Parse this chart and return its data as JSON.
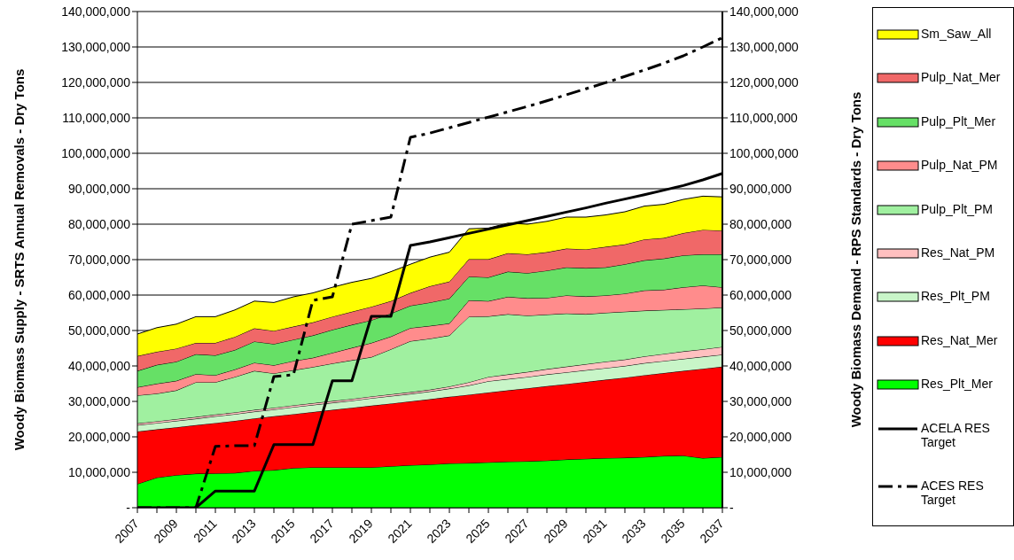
{
  "chart_data": {
    "type": "area",
    "stacked": true,
    "xlabel": null,
    "ylabel": "Woody Biomass Supply - SRTS Annual Removals - Dry Tons",
    "y2label": "Woody Biomass Demand - RPS Standards - Dry Tons",
    "categories": [
      "2007",
      null,
      "2009",
      null,
      "2011",
      null,
      "2013",
      null,
      "2015",
      null,
      "2017",
      null,
      "2019",
      null,
      "2021",
      null,
      "2023",
      null,
      "2025",
      null,
      "2027",
      null,
      "2029",
      null,
      "2031",
      null,
      "2033",
      null,
      "2035",
      null,
      "2037"
    ],
    "ylim": [
      0,
      140000000
    ],
    "yticks": [
      {
        "value": 0,
        "label": "-"
      },
      {
        "value": 10000000,
        "label": "10,000,000"
      },
      {
        "value": 20000000,
        "label": "20,000,000"
      },
      {
        "value": 30000000,
        "label": "30,000,000"
      },
      {
        "value": 40000000,
        "label": "40,000,000"
      },
      {
        "value": 50000000,
        "label": "50,000,000"
      },
      {
        "value": 60000000,
        "label": "60,000,000"
      },
      {
        "value": 70000000,
        "label": "70,000,000"
      },
      {
        "value": 80000000,
        "label": "80,000,000"
      },
      {
        "value": 90000000,
        "label": "90,000,000"
      },
      {
        "value": 100000000,
        "label": "100,000,000"
      },
      {
        "value": 110000000,
        "label": "110,000,000"
      },
      {
        "value": 120000000,
        "label": "120,000,000"
      },
      {
        "value": 130000000,
        "label": "130,000,000"
      },
      {
        "value": 140000000,
        "label": "140,000,000"
      }
    ],
    "y2lim": [
      0,
      140000000
    ],
    "y2ticks": [
      {
        "value": 0,
        "label": "-"
      },
      {
        "value": 10000000,
        "label": "10,000,000"
      },
      {
        "value": 20000000,
        "label": "20,000,000"
      },
      {
        "value": 30000000,
        "label": "30,000,000"
      },
      {
        "value": 40000000,
        "label": "40,000,000"
      },
      {
        "value": 50000000,
        "label": "50,000,000"
      },
      {
        "value": 60000000,
        "label": "60,000,000"
      },
      {
        "value": 70000000,
        "label": "70,000,000"
      },
      {
        "value": 80000000,
        "label": "80,000,000"
      },
      {
        "value": 90000000,
        "label": "90,000,000"
      },
      {
        "value": 100000000,
        "label": "100,000,000"
      },
      {
        "value": 110000000,
        "label": "110,000,000"
      },
      {
        "value": 120000000,
        "label": "120,000,000"
      },
      {
        "value": 130000000,
        "label": "130,000,000"
      },
      {
        "value": 140000000,
        "label": "140,000,000"
      }
    ],
    "grid": "y",
    "legend": "right",
    "series": [
      {
        "name": "Res_Plt_Mer",
        "color": "#00ff00",
        "values": [
          6700000,
          8500000,
          9200000,
          9600000,
          9700000,
          9800000,
          10400000,
          10600000,
          11200000,
          11400000,
          11400000,
          11400000,
          11400000,
          11700000,
          12000000,
          12200000,
          12500000,
          12600000,
          12800000,
          13000000,
          13100000,
          13300000,
          13600000,
          13800000,
          14000000,
          14100000,
          14300000,
          14600000,
          14700000,
          14000000,
          14300000
        ]
      },
      {
        "name": "Res_Nat_Mer",
        "color": "#ff0000",
        "values": [
          14800000,
          13600000,
          13500000,
          13700000,
          14200000,
          14700000,
          14800000,
          15200000,
          15200000,
          15600000,
          16200000,
          16800000,
          17400000,
          17700000,
          18000000,
          18400000,
          18800000,
          19300000,
          19700000,
          20100000,
          20600000,
          21000000,
          21300000,
          21700000,
          22100000,
          22600000,
          23100000,
          23400000,
          23900000,
          25200000,
          25500000
        ]
      },
      {
        "name": "Res_Plt_PM",
        "color": "#c8f5c8",
        "values": [
          1800000,
          1800000,
          1800000,
          1800000,
          1900000,
          1900000,
          1900000,
          1900000,
          2000000,
          2000000,
          2000000,
          2000000,
          2100000,
          2100000,
          2100000,
          2200000,
          2300000,
          2600000,
          3200000,
          3200000,
          3200000,
          3300000,
          3300000,
          3300000,
          3300000,
          3300000,
          3400000,
          3400000,
          3400000,
          3400000,
          3400000
        ]
      },
      {
        "name": "Res_Nat_PM",
        "color": "#ffc0c0",
        "values": [
          500000,
          500000,
          500000,
          500000,
          500000,
          500000,
          500000,
          500000,
          500000,
          500000,
          500000,
          500000,
          500000,
          500000,
          500000,
          500000,
          600000,
          900000,
          1200000,
          1300000,
          1400000,
          1500000,
          1600000,
          1700000,
          1800000,
          1800000,
          1900000,
          2000000,
          2100000,
          2100000,
          2200000
        ]
      },
      {
        "name": "Pulp_Plt_PM",
        "color": "#a0f0a0",
        "values": [
          7900000,
          7800000,
          8100000,
          9800000,
          9100000,
          10000000,
          11000000,
          9700000,
          9900000,
          10200000,
          10600000,
          10900000,
          11100000,
          12700000,
          14400000,
          14400000,
          14400000,
          18500000,
          17100000,
          17000000,
          15900000,
          15400000,
          15000000,
          14100000,
          13800000,
          13500000,
          12900000,
          12400000,
          11900000,
          11500000,
          11100000
        ]
      },
      {
        "name": "Pulp_Nat_PM",
        "color": "#ff8c8c",
        "values": [
          2300000,
          2800000,
          2700000,
          2300000,
          2000000,
          2100000,
          2300000,
          2300000,
          2600000,
          2600000,
          3000000,
          3500000,
          4000000,
          3600000,
          3700000,
          3600000,
          3400000,
          4600000,
          4300000,
          4900000,
          4900000,
          4700000,
          5100000,
          5000000,
          4900000,
          5100000,
          5700000,
          5700000,
          6200000,
          6500000,
          5700000
        ]
      },
      {
        "name": "Pulp_Plt_Mer",
        "color": "#66e066",
        "values": [
          4600000,
          5300000,
          5400000,
          5600000,
          5600000,
          5500000,
          6000000,
          6000000,
          6000000,
          6300000,
          6500000,
          6500000,
          6400000,
          6500000,
          6300000,
          6600000,
          7000000,
          6700000,
          6700000,
          7100000,
          7100000,
          7700000,
          7900000,
          8000000,
          7900000,
          8300000,
          8500000,
          8800000,
          9000000,
          8800000,
          9300000
        ]
      },
      {
        "name": "Pulp_Nat_Mer",
        "color": "#f06868",
        "values": [
          4200000,
          3700000,
          3700000,
          3200000,
          3500000,
          3700000,
          3700000,
          3700000,
          3700000,
          3700000,
          3700000,
          3700000,
          3800000,
          3500000,
          3600000,
          4600000,
          4800000,
          4900000,
          5100000,
          5200000,
          5300000,
          5200000,
          5300000,
          5300000,
          5800000,
          5600000,
          5900000,
          5800000,
          6300000,
          6900000,
          6700000
        ]
      },
      {
        "name": "Sm_Saw_All",
        "color": "#ffff00",
        "values": [
          6200000,
          6800000,
          6900000,
          7400000,
          7400000,
          7600000,
          7700000,
          8000000,
          8400000,
          8300000,
          8300000,
          8300000,
          8000000,
          8300000,
          8100000,
          8200000,
          8300000,
          8600000,
          8800000,
          8500000,
          8500000,
          8700000,
          8900000,
          9100000,
          9000000,
          9200000,
          9400000,
          9500000,
          9500000,
          9500000,
          9500000
        ]
      },
      {
        "name": "ACELA RES Target",
        "type": "line",
        "axis": "y2",
        "color": "#000000",
        "line_style": "solid",
        "values": [
          0,
          0,
          0,
          0,
          4700000,
          4700000,
          4700000,
          17800000,
          17800000,
          17800000,
          35800000,
          35800000,
          54000000,
          54000000,
          74000000,
          75000000,
          76200000,
          77400000,
          78600000,
          79800000,
          81000000,
          82200000,
          83400000,
          84600000,
          85900000,
          87100000,
          88300000,
          89600000,
          90900000,
          92500000,
          94300000
        ]
      },
      {
        "name": "ACES RES Target",
        "type": "line",
        "axis": "y2",
        "color": "#000000",
        "line_style": "dashed",
        "values": [
          0,
          0,
          0,
          0,
          17300000,
          17500000,
          17500000,
          37000000,
          37500000,
          58500000,
          59500000,
          80000000,
          81000000,
          82000000,
          104500000,
          105700000,
          107200000,
          108700000,
          110200000,
          111700000,
          113200000,
          114800000,
          116500000,
          118200000,
          119900000,
          121700000,
          123500000,
          125400000,
          127500000,
          130000000,
          132600000
        ]
      }
    ]
  }
}
